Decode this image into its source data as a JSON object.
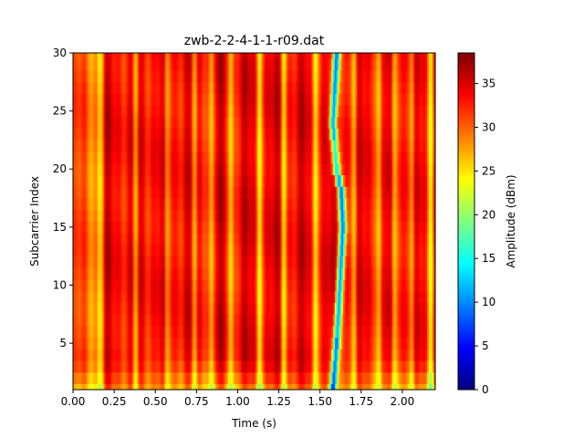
{
  "chart_data": {
    "type": "heatmap",
    "title": "zwb-2-2-4-1-1-r09.dat",
    "xlabel": "Time (s)",
    "ylabel": "Subcarrier Index",
    "xlim": [
      0.0,
      2.2
    ],
    "ylim": [
      1,
      30
    ],
    "x_ticks": [
      "0.00",
      "0.25",
      "0.50",
      "0.75",
      "1.00",
      "1.25",
      "1.50",
      "1.75",
      "2.00"
    ],
    "y_ticks": [
      "5",
      "10",
      "15",
      "20",
      "25",
      "30"
    ],
    "colorbar": {
      "label": "Amplitude (dBm)",
      "range": [
        0,
        38.5
      ],
      "ticks": [
        "0",
        "5",
        "10",
        "15",
        "20",
        "25",
        "30",
        "35"
      ],
      "colormap": "jet"
    },
    "z_description": {
      "base_level_dbm": 34,
      "bright_vertical_bands_time_s": [
        0.17,
        0.38,
        0.57,
        0.74,
        0.84,
        0.96,
        1.13,
        1.28,
        1.47,
        1.71,
        1.86,
        1.95,
        2.06,
        2.17
      ],
      "dip_track_time_s_at_subcarrier": [
        [
          1,
          1.58
        ],
        [
          5,
          1.6
        ],
        [
          10,
          1.62
        ],
        [
          15,
          1.64
        ],
        [
          18,
          1.63
        ],
        [
          20,
          1.6
        ],
        [
          24,
          1.58
        ],
        [
          27,
          1.59
        ],
        [
          30,
          1.6
        ]
      ],
      "dip_min_dbm": 5,
      "low_subcarrier_band_dbm": 29
    }
  }
}
